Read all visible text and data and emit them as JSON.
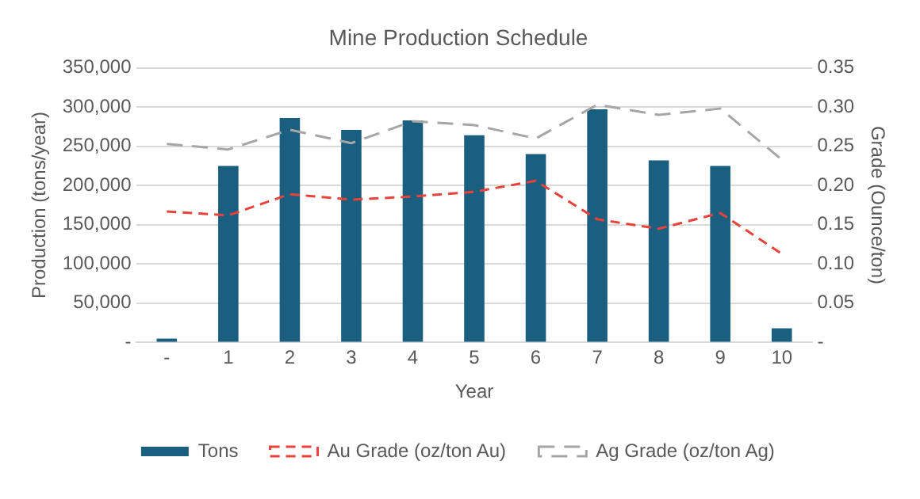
{
  "chart_data": {
    "type": "bar",
    "title": "Mine Production Schedule",
    "xlabel": "Year",
    "ylabel": "Production (tons/year)",
    "y2label": "Grade (Ounce/ton)",
    "categories": [
      "-",
      "1",
      "2",
      "3",
      "4",
      "5",
      "6",
      "7",
      "8",
      "9",
      "10"
    ],
    "series": [
      {
        "name": "Tons",
        "color": "#1a5e80",
        "values": [
          5000,
          225000,
          286000,
          271000,
          283000,
          264000,
          240000,
          297000,
          232000,
          225000,
          18000
        ]
      },
      {
        "name": "Au Grade (oz/ton Au)",
        "type": "line",
        "axis": "y2",
        "color": "#e8423a",
        "line_style": "dashed",
        "values": [
          0.167,
          0.162,
          0.189,
          0.182,
          0.186,
          0.192,
          0.206,
          0.157,
          0.145,
          0.165,
          0.113
        ]
      },
      {
        "name": "Ag Grade (oz/ton Ag)",
        "type": "line",
        "axis": "y2",
        "color": "#a6a6a6",
        "line_style": "dashed",
        "values": [
          0.253,
          0.246,
          0.271,
          0.254,
          0.282,
          0.277,
          0.26,
          0.303,
          0.29,
          0.298,
          0.233
        ]
      }
    ],
    "ylim": [
      0,
      350000
    ],
    "yticks": [
      {
        "value": 0,
        "label": "-"
      },
      {
        "value": 50000,
        "label": "50,000"
      },
      {
        "value": 100000,
        "label": "100,000"
      },
      {
        "value": 150000,
        "label": "150,000"
      },
      {
        "value": 200000,
        "label": "200,000"
      },
      {
        "value": 250000,
        "label": "250,000"
      },
      {
        "value": 300000,
        "label": "300,000"
      },
      {
        "value": 350000,
        "label": "350,000"
      }
    ],
    "y2lim": [
      0,
      0.35
    ],
    "y2ticks": [
      {
        "value": 0,
        "label": "-"
      },
      {
        "value": 0.05,
        "label": "0.05"
      },
      {
        "value": 0.1,
        "label": "0.10"
      },
      {
        "value": 0.15,
        "label": "0.15"
      },
      {
        "value": 0.2,
        "label": "0.20"
      },
      {
        "value": 0.25,
        "label": "0.25"
      },
      {
        "value": 0.3,
        "label": "0.30"
      },
      {
        "value": 0.35,
        "label": "0.35"
      }
    ],
    "grid": "y",
    "legend": "bottom",
    "marker": "none"
  }
}
